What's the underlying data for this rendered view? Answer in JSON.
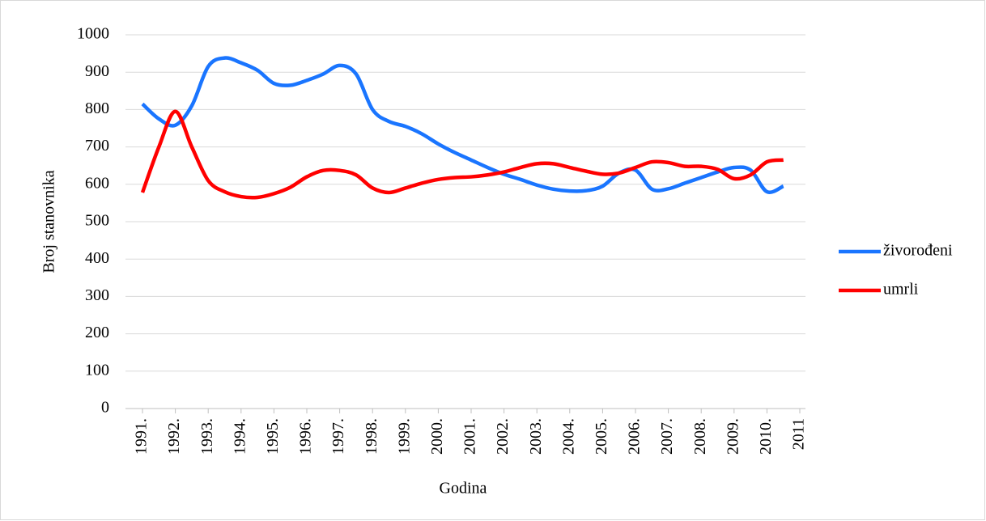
{
  "chart_data": {
    "type": "line",
    "x_label": "Godina",
    "y_label": "Broj stanovnika",
    "categories": [
      "1991.",
      null,
      "1992.",
      null,
      "1993.",
      null,
      "1994.",
      null,
      "1995.",
      null,
      "1996.",
      null,
      "1997.",
      null,
      "1998.",
      null,
      "1999.",
      null,
      "2000.",
      null,
      "2001.",
      null,
      "2002.",
      null,
      "2003.",
      null,
      "2004.",
      null,
      "2005.",
      null,
      "2006.",
      null,
      "2007.",
      null,
      "2008.",
      null,
      "2009.",
      null,
      "2010.",
      null,
      "2011"
    ],
    "series": [
      {
        "name": "živorođeni",
        "color": "#1a75ff",
        "values": [
          815,
          775,
          758,
          810,
          915,
          938,
          925,
          905,
          870,
          865,
          878,
          895,
          918,
          895,
          800,
          768,
          755,
          735,
          708,
          685,
          665,
          645,
          627,
          613,
          598,
          587,
          582,
          583,
          595,
          630,
          638,
          587,
          588,
          603,
          618,
          633,
          645,
          638,
          580,
          595,
          null
        ]
      },
      {
        "name": "umrli",
        "color": "#ff0000",
        "values": [
          578,
          700,
          795,
          700,
          610,
          580,
          567,
          565,
          575,
          592,
          620,
          637,
          637,
          625,
          590,
          578,
          590,
          603,
          613,
          618,
          620,
          625,
          633,
          645,
          655,
          655,
          645,
          635,
          627,
          630,
          645,
          660,
          658,
          648,
          648,
          640,
          615,
          625,
          660,
          665,
          null
        ]
      }
    ],
    "ylim": [
      0,
      1000
    ],
    "yticks": [
      0,
      100,
      200,
      300,
      400,
      500,
      600,
      700,
      800,
      900,
      1000
    ],
    "grid": true,
    "legend": "right"
  }
}
